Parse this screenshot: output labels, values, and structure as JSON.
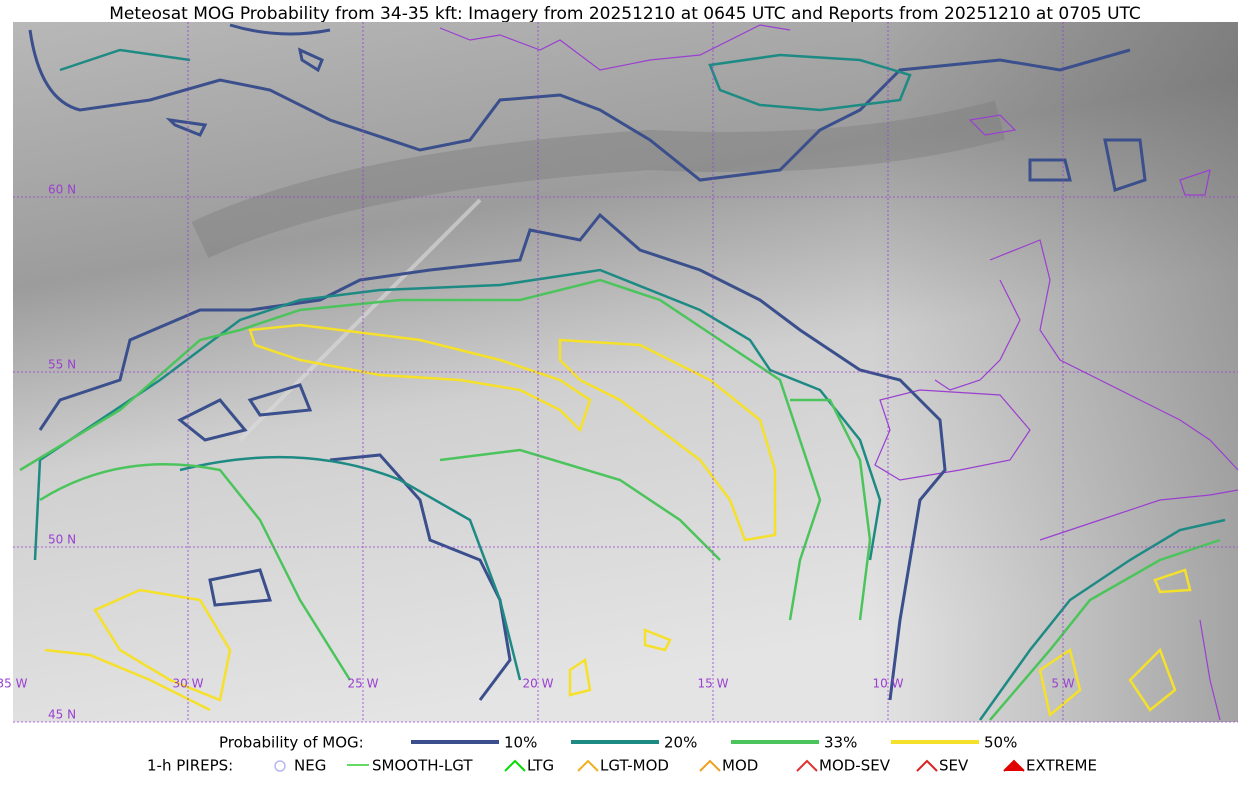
{
  "title": "Meteosat MOG Probability from 34-35 kft: Imagery from 20251210 at 0645 UTC and Reports from 20251210 at 0705 UTC",
  "map": {
    "lat_labels": [
      "60 N",
      "55 N",
      "50 N",
      "45 N"
    ],
    "lon_labels": [
      "35 W",
      "30 W",
      "25 W",
      "20 W",
      "15 W",
      "10 W",
      "5 W"
    ]
  },
  "legend": {
    "probability": {
      "label": "Probability of MOG:",
      "items": [
        {
          "label": "10%",
          "color": "#3a4f8c"
        },
        {
          "label": "20%",
          "color": "#1e8a84"
        },
        {
          "label": "33%",
          "color": "#4cc45c"
        },
        {
          "label": "50%",
          "color": "#f5e02a"
        }
      ]
    },
    "pireps": {
      "label": "1-h PIREPS:",
      "items": [
        {
          "label": "NEG",
          "color": "#b8b8f0"
        },
        {
          "label": "SMOOTH-LGT",
          "color": "#33cc33"
        },
        {
          "label": "LTG",
          "color": "#00dd00"
        },
        {
          "label": "LGT-MOD",
          "color": "#f0b020"
        },
        {
          "label": "MOD",
          "color": "#f0a020"
        },
        {
          "label": "MOD-SEV",
          "color": "#e03030"
        },
        {
          "label": "SEV",
          "color": "#e02020"
        },
        {
          "label": "EXTREME",
          "color": "#e00000"
        }
      ]
    }
  }
}
